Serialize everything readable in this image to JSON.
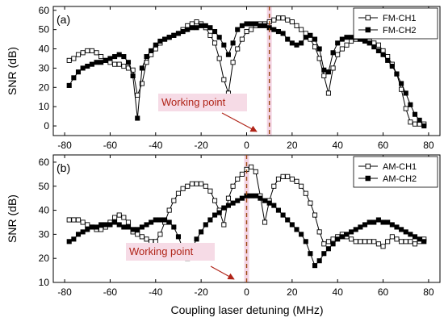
{
  "chart_data": [
    {
      "type": "line",
      "panel_label": "(a)",
      "ylabel": "SNR (dB)",
      "xlim": [
        -85,
        85
      ],
      "ylim": [
        -5,
        62
      ],
      "xticks": [
        -80,
        -60,
        -40,
        -20,
        0,
        20,
        40,
        60,
        80
      ],
      "xtick_labels": [
        "-80",
        "-60",
        "-40",
        "-20",
        "0",
        "20",
        "40",
        "60",
        "80"
      ],
      "yticks": [
        0,
        10,
        20,
        30,
        40,
        50,
        60
      ],
      "ytick_labels": [
        "0",
        "10",
        "20",
        "30",
        "40",
        "50",
        "60"
      ],
      "legend_position": "top-right",
      "working_point": {
        "x": 10,
        "label": "Working point"
      },
      "series": [
        {
          "name": "FM-CH1",
          "marker": "open-square",
          "x": [
            -78,
            -76,
            -74,
            -72,
            -70,
            -68,
            -66,
            -64,
            -62,
            -60,
            -58,
            -56,
            -54,
            -52,
            -50,
            -48,
            -46,
            -44,
            -42,
            -40,
            -38,
            -36,
            -34,
            -32,
            -30,
            -28,
            -26,
            -24,
            -22,
            -20,
            -18,
            -16,
            -14,
            -12,
            -10,
            -8,
            -6,
            -4,
            -2,
            0,
            2,
            4,
            6,
            8,
            10,
            12,
            14,
            16,
            18,
            20,
            22,
            24,
            26,
            28,
            30,
            32,
            34,
            36,
            38,
            40,
            42,
            44,
            46,
            48,
            50,
            52,
            54,
            56,
            58,
            60,
            62,
            64,
            66,
            68,
            70,
            72,
            74,
            76,
            78
          ],
          "y": [
            34,
            35,
            37,
            38,
            39,
            39,
            38,
            36,
            34,
            33,
            32,
            32,
            31,
            30,
            29,
            16,
            22,
            33,
            37,
            40,
            43,
            45,
            46,
            47,
            48,
            50,
            52,
            53,
            54,
            53,
            51,
            47,
            43,
            35,
            24,
            17,
            33,
            40,
            45,
            49,
            50,
            52,
            53,
            53,
            54,
            55,
            56,
            56,
            55,
            54,
            52,
            50,
            48,
            45,
            41,
            35,
            26,
            17,
            30,
            37,
            40,
            42,
            44,
            45,
            45,
            45,
            44,
            43,
            42,
            39,
            36,
            32,
            27,
            19,
            9,
            2,
            1,
            1,
            1
          ]
        },
        {
          "name": "FM-CH2",
          "marker": "filled-square",
          "x": [
            -78,
            -76,
            -74,
            -72,
            -70,
            -68,
            -66,
            -64,
            -62,
            -60,
            -58,
            -56,
            -54,
            -52,
            -50,
            -48,
            -46,
            -44,
            -42,
            -40,
            -38,
            -36,
            -34,
            -32,
            -30,
            -28,
            -26,
            -24,
            -22,
            -20,
            -18,
            -16,
            -14,
            -12,
            -10,
            -8,
            -6,
            -4,
            -2,
            0,
            2,
            4,
            6,
            8,
            10,
            12,
            14,
            16,
            18,
            20,
            22,
            24,
            26,
            28,
            30,
            32,
            34,
            36,
            38,
            40,
            42,
            44,
            46,
            48,
            50,
            52,
            54,
            56,
            58,
            60,
            62,
            64,
            66,
            68,
            70,
            72,
            74,
            76,
            78
          ],
          "y": [
            21,
            25,
            28,
            30,
            31,
            32,
            33,
            33,
            34,
            35,
            36,
            37,
            36,
            33,
            26,
            4,
            30,
            36,
            39,
            42,
            44,
            45,
            46,
            47,
            48,
            49,
            50,
            51,
            51,
            52,
            52,
            51,
            49,
            46,
            42,
            37,
            43,
            50,
            52,
            53,
            53,
            53,
            52,
            52,
            51,
            50,
            49,
            48,
            45,
            43,
            42,
            43,
            46,
            47,
            45,
            40,
            29,
            28,
            38,
            43,
            45,
            46,
            46,
            46,
            45,
            44,
            43,
            41,
            39,
            37,
            34,
            31,
            27,
            22,
            17,
            11,
            6,
            3,
            0
          ]
        }
      ]
    },
    {
      "type": "line",
      "panel_label": "(b)",
      "ylabel": "SNR (dB)",
      "xlim": [
        -85,
        85
      ],
      "ylim": [
        10,
        63
      ],
      "xticks": [
        -80,
        -60,
        -40,
        -20,
        0,
        20,
        40,
        60,
        80
      ],
      "xtick_labels": [
        "-80",
        "-60",
        "-40",
        "-20",
        "0",
        "20",
        "40",
        "60",
        "80"
      ],
      "yticks": [
        10,
        20,
        30,
        40,
        50,
        60
      ],
      "ytick_labels": [
        "10",
        "20",
        "30",
        "40",
        "50",
        "60"
      ],
      "xlabel": "Coupling laser detuning (MHz)",
      "legend_position": "top-right",
      "working_point": {
        "x": 0,
        "label": "Working point"
      },
      "series": [
        {
          "name": "AM-CH1",
          "marker": "open-square",
          "x": [
            -78,
            -76,
            -74,
            -72,
            -70,
            -68,
            -66,
            -64,
            -62,
            -60,
            -58,
            -56,
            -54,
            -52,
            -50,
            -48,
            -46,
            -44,
            -42,
            -40,
            -38,
            -36,
            -34,
            -32,
            -30,
            -28,
            -26,
            -24,
            -22,
            -20,
            -18,
            -16,
            -14,
            -12,
            -10,
            -8,
            -6,
            -4,
            -2,
            0,
            2,
            4,
            6,
            8,
            10,
            12,
            14,
            16,
            18,
            20,
            22,
            24,
            26,
            28,
            30,
            32,
            34,
            36,
            38,
            40,
            42,
            44,
            46,
            48,
            50,
            52,
            54,
            56,
            58,
            60,
            62,
            64,
            66,
            68,
            70,
            72,
            74,
            76,
            78
          ],
          "y": [
            36,
            36,
            36,
            35,
            34,
            33,
            32,
            32,
            33,
            35,
            37,
            38,
            37,
            35,
            31,
            30,
            29,
            28,
            27,
            27,
            30,
            35,
            40,
            44,
            47,
            49,
            50,
            51,
            51,
            51,
            50,
            48,
            44,
            40,
            34,
            45,
            50,
            53,
            55,
            57,
            58,
            56,
            46,
            35,
            44,
            50,
            53,
            54,
            54,
            53,
            52,
            50,
            47,
            43,
            38,
            31,
            26,
            27,
            28,
            29,
            30,
            29,
            28,
            27,
            27,
            27,
            27,
            27,
            26,
            25,
            27,
            29,
            28,
            27,
            27,
            27,
            26,
            27,
            28
          ]
        },
        {
          "name": "AM-CH2",
          "marker": "filled-square",
          "x": [
            -78,
            -76,
            -74,
            -72,
            -70,
            -68,
            -66,
            -64,
            -62,
            -60,
            -58,
            -56,
            -54,
            -52,
            -50,
            -48,
            -46,
            -44,
            -42,
            -40,
            -38,
            -36,
            -34,
            -32,
            -30,
            -28,
            -26,
            -24,
            -22,
            -20,
            -18,
            -16,
            -14,
            -12,
            -10,
            -8,
            -6,
            -4,
            -2,
            0,
            2,
            4,
            6,
            8,
            10,
            12,
            14,
            16,
            18,
            20,
            22,
            24,
            26,
            28,
            30,
            32,
            34,
            36,
            38,
            40,
            42,
            44,
            46,
            48,
            50,
            52,
            54,
            56,
            58,
            60,
            62,
            64,
            66,
            68,
            70,
            72,
            74,
            76,
            78
          ],
          "y": [
            27,
            28,
            30,
            31,
            32,
            33,
            33,
            34,
            34,
            34,
            35,
            34,
            33,
            33,
            32,
            32,
            33,
            34,
            35,
            36,
            36,
            36,
            35,
            33,
            29,
            24,
            20,
            24,
            28,
            31,
            34,
            36,
            38,
            39,
            41,
            42,
            43,
            44,
            45,
            46,
            46,
            46,
            45,
            44,
            43,
            42,
            40,
            38,
            36,
            34,
            32,
            30,
            27,
            22,
            17,
            19,
            22,
            24,
            26,
            28,
            29,
            30,
            31,
            32,
            33,
            34,
            35,
            35,
            36,
            35,
            35,
            34,
            33,
            32,
            31,
            30,
            29,
            28,
            27
          ]
        }
      ]
    }
  ]
}
